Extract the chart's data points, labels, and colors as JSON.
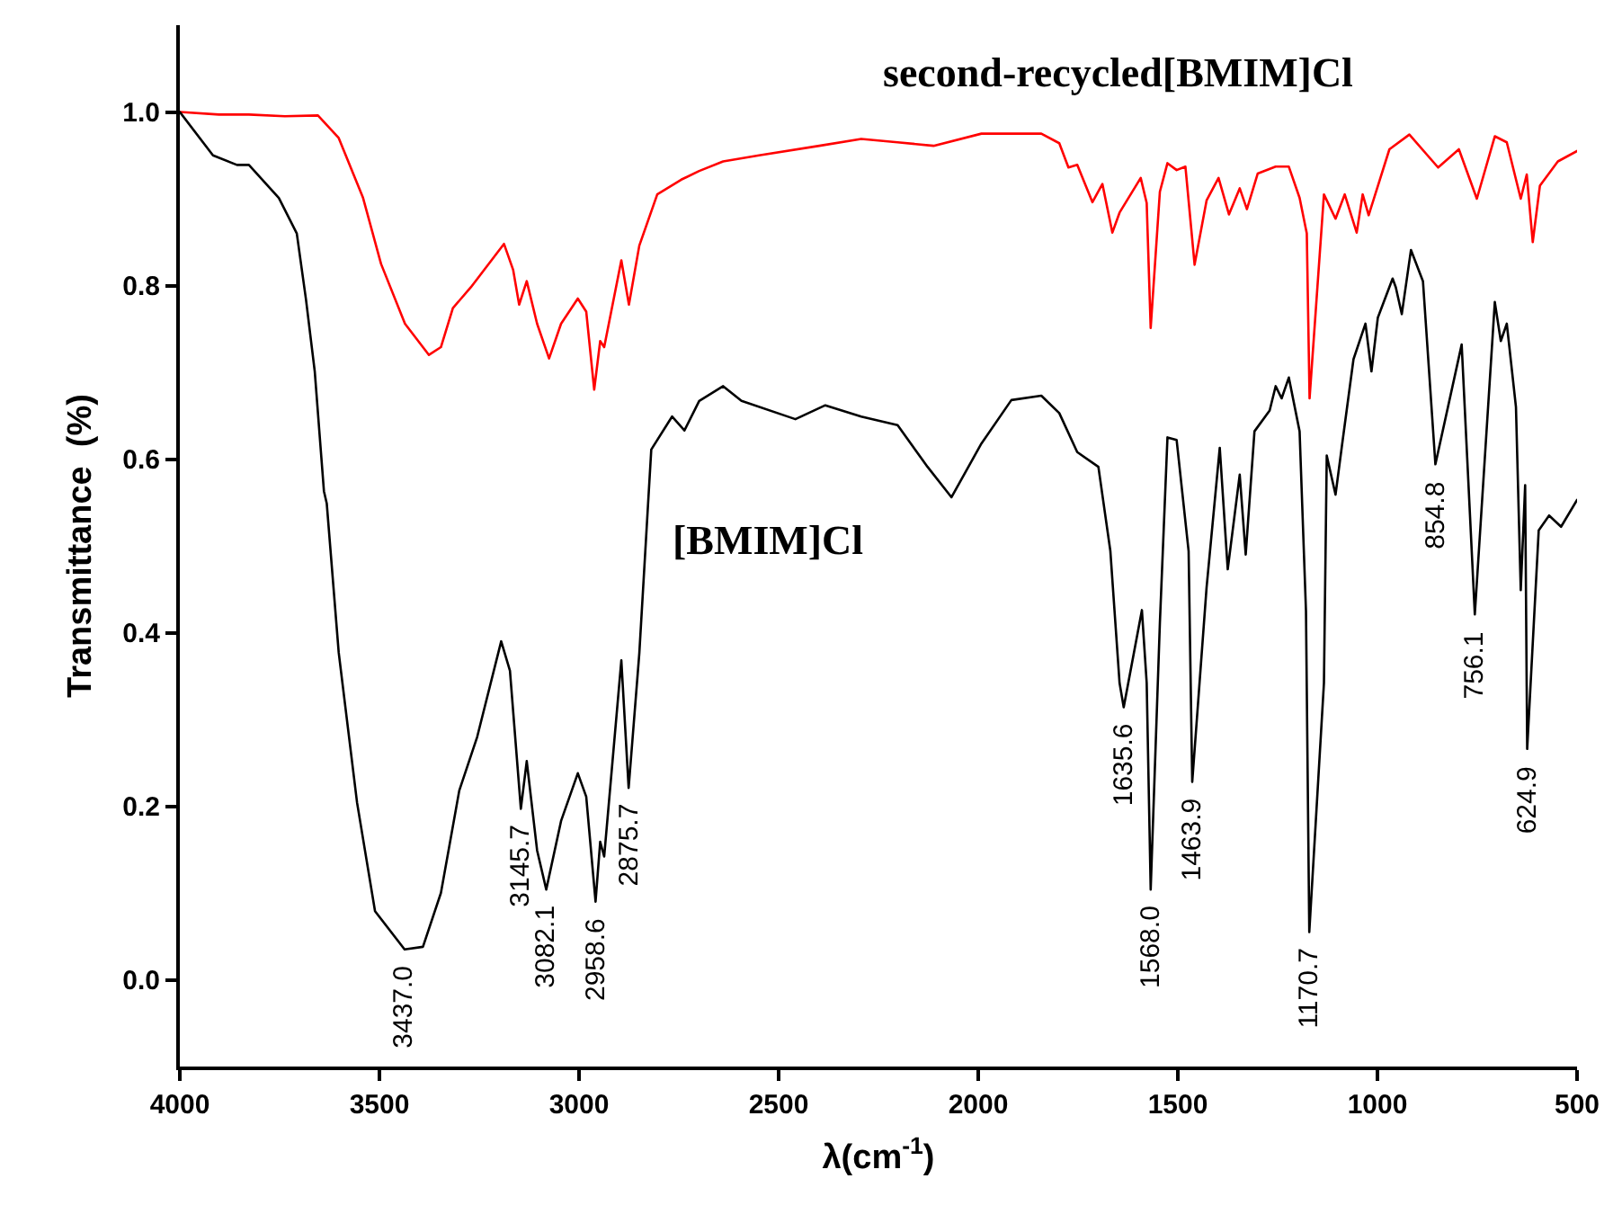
{
  "chart_data": {
    "type": "line",
    "xlabel": "λ(cm$^{-1}$)",
    "ylabel": "Transmittance  (%)",
    "xlim": [
      4000,
      500
    ],
    "xticks": [
      4000,
      3500,
      3000,
      2500,
      2000,
      1500,
      1000,
      500
    ],
    "ylim": [
      -0.1,
      1.1
    ],
    "yticks": [
      {
        "value": 0,
        "label": "0.0"
      },
      {
        "value": 0.2,
        "label": "0.2"
      },
      {
        "value": 0.4,
        "label": "0.4"
      },
      {
        "value": 0.6,
        "label": "0.6"
      },
      {
        "value": 0.8,
        "label": "0.8"
      },
      {
        "value": 1,
        "label": "1.0"
      }
    ],
    "grid": false,
    "legend": false,
    "marker": "none",
    "line_style": "solid",
    "series": [
      {
        "name": "second-recycled[BMIM]Cl",
        "color": "#ff0000",
        "x": [
          4000,
          3902,
          3827,
          3737,
          3654,
          3602,
          3541,
          3496,
          3436,
          3376,
          3346,
          3316,
          3271,
          3188,
          3165,
          3150,
          3131,
          3105,
          3075,
          3045,
          3003,
          2982,
          2962,
          2947,
          2937,
          2894,
          2875,
          2849,
          2804,
          2744,
          2699,
          2639,
          2549,
          2398,
          2293,
          2202,
          2112,
          1992,
          1842,
          1797,
          1774,
          1752,
          1714,
          1689,
          1664,
          1646,
          1593,
          1578,
          1568,
          1545,
          1526,
          1503,
          1481,
          1458,
          1428,
          1398,
          1372,
          1345,
          1327,
          1300,
          1255,
          1222,
          1195,
          1177,
          1170,
          1134,
          1105,
          1082,
          1052,
          1037,
          1022,
          970,
          920,
          848,
          796,
          751,
          706,
          676,
          641,
          626,
          611,
          593,
          548,
          500
        ],
        "values": [
          1.0,
          0.997,
          0.997,
          0.995,
          0.996,
          0.97,
          0.901,
          0.825,
          0.756,
          0.72,
          0.729,
          0.774,
          0.798,
          0.848,
          0.818,
          0.778,
          0.805,
          0.756,
          0.716,
          0.756,
          0.785,
          0.77,
          0.68,
          0.736,
          0.729,
          0.829,
          0.778,
          0.846,
          0.905,
          0.922,
          0.932,
          0.943,
          0.95,
          0.961,
          0.969,
          0.965,
          0.961,
          0.975,
          0.975,
          0.964,
          0.936,
          0.939,
          0.896,
          0.917,
          0.861,
          0.884,
          0.924,
          0.895,
          0.751,
          0.908,
          0.941,
          0.933,
          0.937,
          0.824,
          0.898,
          0.924,
          0.882,
          0.912,
          0.888,
          0.929,
          0.937,
          0.937,
          0.901,
          0.86,
          0.67,
          0.905,
          0.877,
          0.905,
          0.861,
          0.905,
          0.881,
          0.957,
          0.974,
          0.936,
          0.957,
          0.9,
          0.972,
          0.965,
          0.9,
          0.928,
          0.85,
          0.915,
          0.943,
          0.955
        ]
      },
      {
        "name": "[BMIM]Cl",
        "color": "#000000",
        "x": [
          4000,
          3917,
          3857,
          3827,
          3752,
          3707,
          3684,
          3662,
          3639,
          3632,
          3602,
          3556,
          3511,
          3437,
          3391,
          3346,
          3300,
          3255,
          3195,
          3173,
          3145.7,
          3131,
          3105,
          3082.1,
          3045,
          3003,
          2982,
          2958.6,
          2947,
          2937,
          2894,
          2875.7,
          2849,
          2827,
          2819,
          2767,
          2736,
          2699,
          2639,
          2593,
          2458,
          2383,
          2293,
          2202,
          2127,
          2067,
          1992,
          1917,
          1842,
          1797,
          1752,
          1699,
          1669,
          1646,
          1635.6,
          1590,
          1578,
          1568.0,
          1545,
          1526,
          1503,
          1473,
          1463.9,
          1428,
          1395,
          1375,
          1345,
          1330,
          1308,
          1270,
          1255,
          1240,
          1222,
          1195,
          1179,
          1170.7,
          1134,
          1127,
          1105,
          1089,
          1060,
          1030,
          1015,
          999,
          962,
          954,
          939,
          916,
          886,
          854.8,
          789,
          756.1,
          706,
          691,
          676,
          653,
          641,
          630,
          624.9,
          596,
          570,
          540,
          500
        ],
        "values": [
          1.0,
          0.95,
          0.939,
          0.939,
          0.901,
          0.86,
          0.784,
          0.701,
          0.563,
          0.549,
          0.377,
          0.204,
          0.079,
          0.035,
          0.038,
          0.1,
          0.218,
          0.28,
          0.39,
          0.356,
          0.197,
          0.252,
          0.149,
          0.104,
          0.183,
          0.238,
          0.211,
          0.09,
          0.159,
          0.142,
          0.368,
          0.221,
          0.376,
          0.549,
          0.611,
          0.649,
          0.633,
          0.667,
          0.684,
          0.667,
          0.646,
          0.662,
          0.649,
          0.639,
          0.591,
          0.556,
          0.618,
          0.668,
          0.673,
          0.653,
          0.608,
          0.591,
          0.494,
          0.342,
          0.314,
          0.426,
          0.342,
          0.104,
          0.411,
          0.625,
          0.622,
          0.494,
          0.228,
          0.452,
          0.613,
          0.473,
          0.582,
          0.49,
          0.632,
          0.656,
          0.684,
          0.67,
          0.694,
          0.632,
          0.425,
          0.055,
          0.342,
          0.604,
          0.559,
          0.615,
          0.715,
          0.756,
          0.701,
          0.763,
          0.808,
          0.798,
          0.767,
          0.841,
          0.805,
          0.594,
          0.732,
          0.421,
          0.781,
          0.736,
          0.756,
          0.66,
          0.449,
          0.57,
          0.266,
          0.518,
          0.535,
          0.522,
          0.553
        ]
      }
    ],
    "annotations": [
      {
        "text": "3437.0",
        "x": 3437,
        "y": 0.035
      },
      {
        "text": "3145.7",
        "x": 3145.7,
        "y": 0.197
      },
      {
        "text": "3082.1",
        "x": 3082.1,
        "y": 0.104
      },
      {
        "text": "2958.6",
        "x": 2958.6,
        "y": 0.09
      },
      {
        "text": "2875.7",
        "x": 2875.7,
        "y": 0.221
      },
      {
        "text": "1635.6",
        "x": 1635.6,
        "y": 0.314
      },
      {
        "text": "1568.0",
        "x": 1568.0,
        "y": 0.104
      },
      {
        "text": "1463.9",
        "x": 1463.9,
        "y": 0.228
      },
      {
        "text": "1170.7",
        "x": 1170.7,
        "y": 0.055
      },
      {
        "text": "854.8",
        "x": 854.8,
        "y": 0.594
      },
      {
        "text": "756.1",
        "x": 756.1,
        "y": 0.421
      },
      {
        "text": "624.9",
        "x": 624.9,
        "y": 0.266
      }
    ]
  }
}
